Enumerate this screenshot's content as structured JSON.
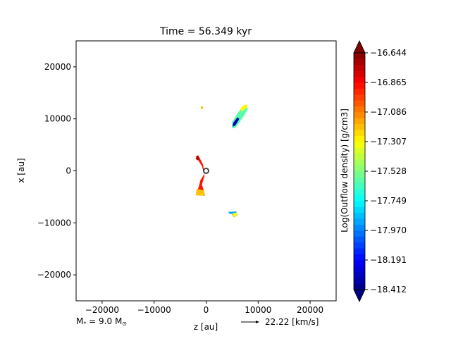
{
  "chart_data": {
    "type": "heatmap",
    "title": "Time = 56.349 kyr",
    "xlabel": "z [au]",
    "ylabel": "x [au]",
    "xlim": [
      -25000,
      25000
    ],
    "ylim": [
      -25000,
      25000
    ],
    "xticks": [
      -20000,
      -10000,
      0,
      10000,
      20000
    ],
    "yticks": [
      -20000,
      -10000,
      0,
      10000,
      20000
    ],
    "xtick_labels": [
      "−20000",
      "−10000",
      "0",
      "10000",
      "20000"
    ],
    "ytick_labels": [
      "−20000",
      "−10000",
      "0",
      "10000",
      "20000"
    ],
    "grid": false,
    "colormap": "jet",
    "colorbar": {
      "label": "Log(Outflow density) [g/cm3]",
      "range": [
        -18.412,
        -16.644
      ],
      "ticks": [
        -16.644,
        -16.865,
        -17.086,
        -17.307,
        -17.528,
        -17.749,
        -17.97,
        -18.191,
        -18.412
      ],
      "tick_labels": [
        "−16.644",
        "−16.865",
        "−17.086",
        "−17.307",
        "−17.528",
        "−17.749",
        "−17.970",
        "−18.191",
        "−18.412"
      ],
      "levels": 40
    },
    "regions": [
      {
        "points": [
          [
            5000,
            8200
          ],
          [
            5000,
            9400
          ],
          [
            6000,
            11000
          ],
          [
            7200,
            12600
          ],
          [
            7900,
            12700
          ],
          [
            8000,
            11800
          ],
          [
            7000,
            10200
          ],
          [
            5900,
            8600
          ],
          [
            5400,
            8200
          ]
        ],
        "value": -17.6
      },
      {
        "points": [
          [
            5100,
            8500
          ],
          [
            5600,
            8700
          ],
          [
            6400,
            10000
          ],
          [
            6000,
            10300
          ],
          [
            5200,
            9200
          ]
        ],
        "value": -18.3
      },
      {
        "points": [
          [
            6800,
            11400
          ],
          [
            7900,
            12200
          ],
          [
            7900,
            12700
          ],
          [
            7300,
            12700
          ],
          [
            6600,
            12000
          ]
        ],
        "value": -17.3
      },
      {
        "points": [
          [
            -2000,
            2800
          ],
          [
            -1500,
            3000
          ],
          [
            -600,
            1200
          ],
          [
            -300,
            -500
          ],
          [
            -1100,
            -1800
          ],
          [
            -1400,
            -3000
          ],
          [
            -2000,
            -4600
          ],
          [
            -200,
            -4800
          ],
          [
            -800,
            -2600
          ],
          [
            -300,
            -900
          ],
          [
            -800,
            900
          ],
          [
            -1500,
            2000
          ]
        ],
        "value": -16.9
      },
      {
        "points": [
          [
            -1800,
            -3400
          ],
          [
            -400,
            -3800
          ],
          [
            -200,
            -4800
          ],
          [
            -2000,
            -4700
          ]
        ],
        "value": -17.2
      },
      {
        "points": [
          [
            -2000,
            2400
          ],
          [
            -1600,
            2900
          ],
          [
            -1300,
            2300
          ],
          [
            -1700,
            2000
          ]
        ],
        "value": -16.7
      },
      {
        "points": [
          [
            4300,
            -7900
          ],
          [
            5800,
            -7800
          ],
          [
            6000,
            -8600
          ],
          [
            5300,
            -8900
          ],
          [
            4900,
            -8300
          ],
          [
            4400,
            -8200
          ]
        ],
        "value": -17.9
      },
      {
        "points": [
          [
            5000,
            -8200
          ],
          [
            5900,
            -8000
          ],
          [
            5900,
            -8800
          ],
          [
            5200,
            -8800
          ]
        ],
        "value": -17.3
      },
      {
        "points": [
          [
            -1000,
            11900
          ],
          [
            -600,
            11900
          ],
          [
            -600,
            12400
          ],
          [
            -1000,
            12400
          ]
        ],
        "value": -17.2
      }
    ],
    "star": {
      "z": 0,
      "x": 0
    },
    "annotations": {
      "star_mass": "M$_{*}$ = 9.0 M$_\\odot$",
      "velocity_key": "22.22 [km/s]"
    }
  }
}
